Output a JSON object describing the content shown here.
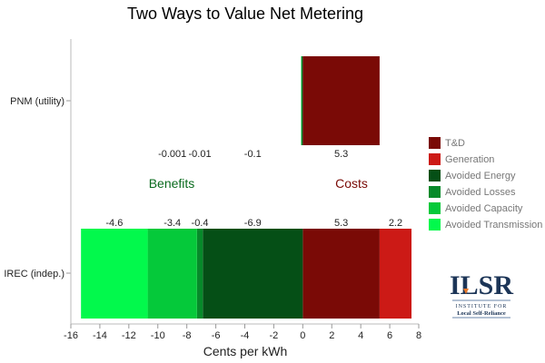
{
  "chart_data": {
    "type": "bar",
    "orientation": "horizontal",
    "stacked": true,
    "title": "Two Ways to Value Net Metering",
    "xlabel": "Cents per kWh",
    "ylabel": "",
    "xlim": [
      -16,
      8
    ],
    "xticks": [
      -16,
      -14,
      -12,
      -10,
      -8,
      -6,
      -4,
      -2,
      0,
      2,
      4,
      6,
      8
    ],
    "grid": false,
    "legend_position": "right",
    "categories": [
      "PNM (utility)",
      "IREC (indep.)"
    ],
    "series": [
      {
        "name": "T&D",
        "color": "#7a0a06",
        "values": [
          5.3,
          5.3
        ]
      },
      {
        "name": "Generation",
        "color": "#cc1a16",
        "values": [
          0,
          2.2
        ]
      },
      {
        "name": "Avoided Energy",
        "color": "#054f16",
        "values": [
          -0.1,
          -6.9
        ]
      },
      {
        "name": "Avoided Losses",
        "color": "#078a2a",
        "values": [
          -0.01,
          -0.4
        ]
      },
      {
        "name": "Avoided Capacity",
        "color": "#05c93a",
        "values": [
          -0.001,
          -3.4
        ]
      },
      {
        "name": "Avoided Transmission",
        "color": "#02f94c",
        "values": [
          0,
          -4.6
        ]
      }
    ],
    "data_labels": [
      [
        "5.3",
        null,
        "-0.1",
        "-0.01",
        "-0.001",
        null
      ],
      [
        "5.3",
        "2.2",
        "-6.9",
        "-0.4",
        "-3.4",
        "-4.6"
      ]
    ],
    "annotations": [
      {
        "text": "Benefits",
        "color": "#0a6b1e"
      },
      {
        "text": "Costs",
        "color": "#7a0a06"
      }
    ]
  },
  "logo": {
    "name": "ILSR",
    "line1": "INSTITUTE FOR",
    "line2": "Local Self-Reliance"
  }
}
